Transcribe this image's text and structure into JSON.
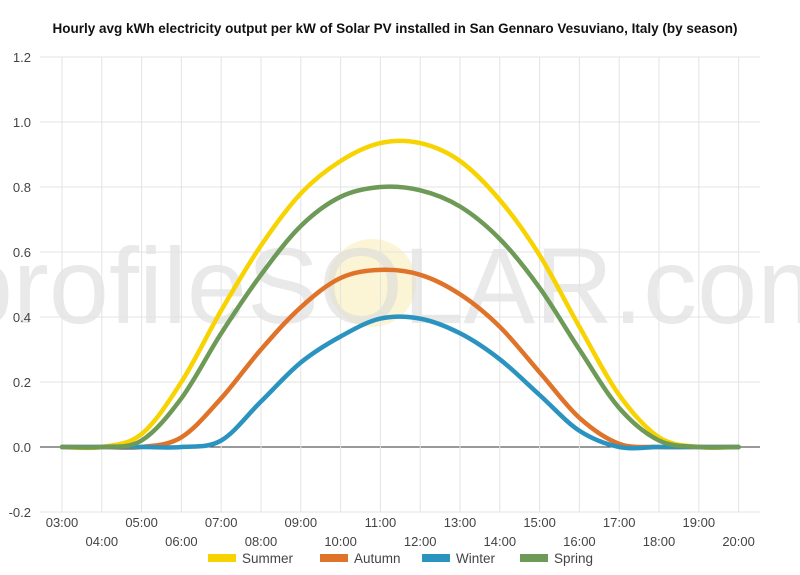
{
  "chart_data": {
    "type": "line",
    "title": "Hourly avg kWh electricity output per kW of Solar PV installed in San Gennaro Vesuviano, Italy (by season)",
    "watermark": "profileSOLAR.com",
    "xlabel": "",
    "ylabel": "",
    "x_ticks": [
      "03:00",
      "04:00",
      "05:00",
      "06:00",
      "07:00",
      "08:00",
      "09:00",
      "10:00",
      "11:00",
      "12:00",
      "13:00",
      "14:00",
      "15:00",
      "16:00",
      "17:00",
      "18:00",
      "19:00",
      "20:00"
    ],
    "y_ticks": [
      "-0.2",
      "0.0",
      "0.2",
      "0.4",
      "0.6",
      "0.8",
      "1.0",
      "1.2"
    ],
    "ylim": [
      -0.2,
      1.2
    ],
    "grid": true,
    "legend_position": "bottom",
    "colors": {
      "Summer": "#f7d302",
      "Autumn": "#e0732a",
      "Winter": "#2a93c0",
      "Spring": "#6e9a58",
      "grid": "#e3e3e3",
      "axis": "#333333"
    },
    "series": [
      {
        "name": "Summer",
        "color": "#f7d302",
        "values": [
          0.0,
          0.0,
          0.04,
          0.2,
          0.42,
          0.62,
          0.78,
          0.88,
          0.935,
          0.935,
          0.88,
          0.76,
          0.59,
          0.37,
          0.16,
          0.03,
          0.0,
          0.0
        ]
      },
      {
        "name": "Autumn",
        "color": "#e0732a",
        "values": [
          0.0,
          0.0,
          0.0,
          0.03,
          0.15,
          0.3,
          0.43,
          0.52,
          0.545,
          0.53,
          0.47,
          0.37,
          0.23,
          0.09,
          0.01,
          0.0,
          0.0,
          0.0
        ]
      },
      {
        "name": "Winter",
        "color": "#2a93c0",
        "values": [
          0.0,
          0.0,
          0.0,
          0.0,
          0.02,
          0.14,
          0.26,
          0.34,
          0.395,
          0.395,
          0.35,
          0.27,
          0.16,
          0.05,
          0.0,
          0.0,
          0.0,
          0.0
        ]
      },
      {
        "name": "Spring",
        "color": "#6e9a58",
        "values": [
          0.0,
          0.0,
          0.02,
          0.15,
          0.35,
          0.53,
          0.68,
          0.77,
          0.8,
          0.79,
          0.74,
          0.64,
          0.49,
          0.3,
          0.12,
          0.02,
          0.0,
          0.0
        ]
      }
    ]
  }
}
